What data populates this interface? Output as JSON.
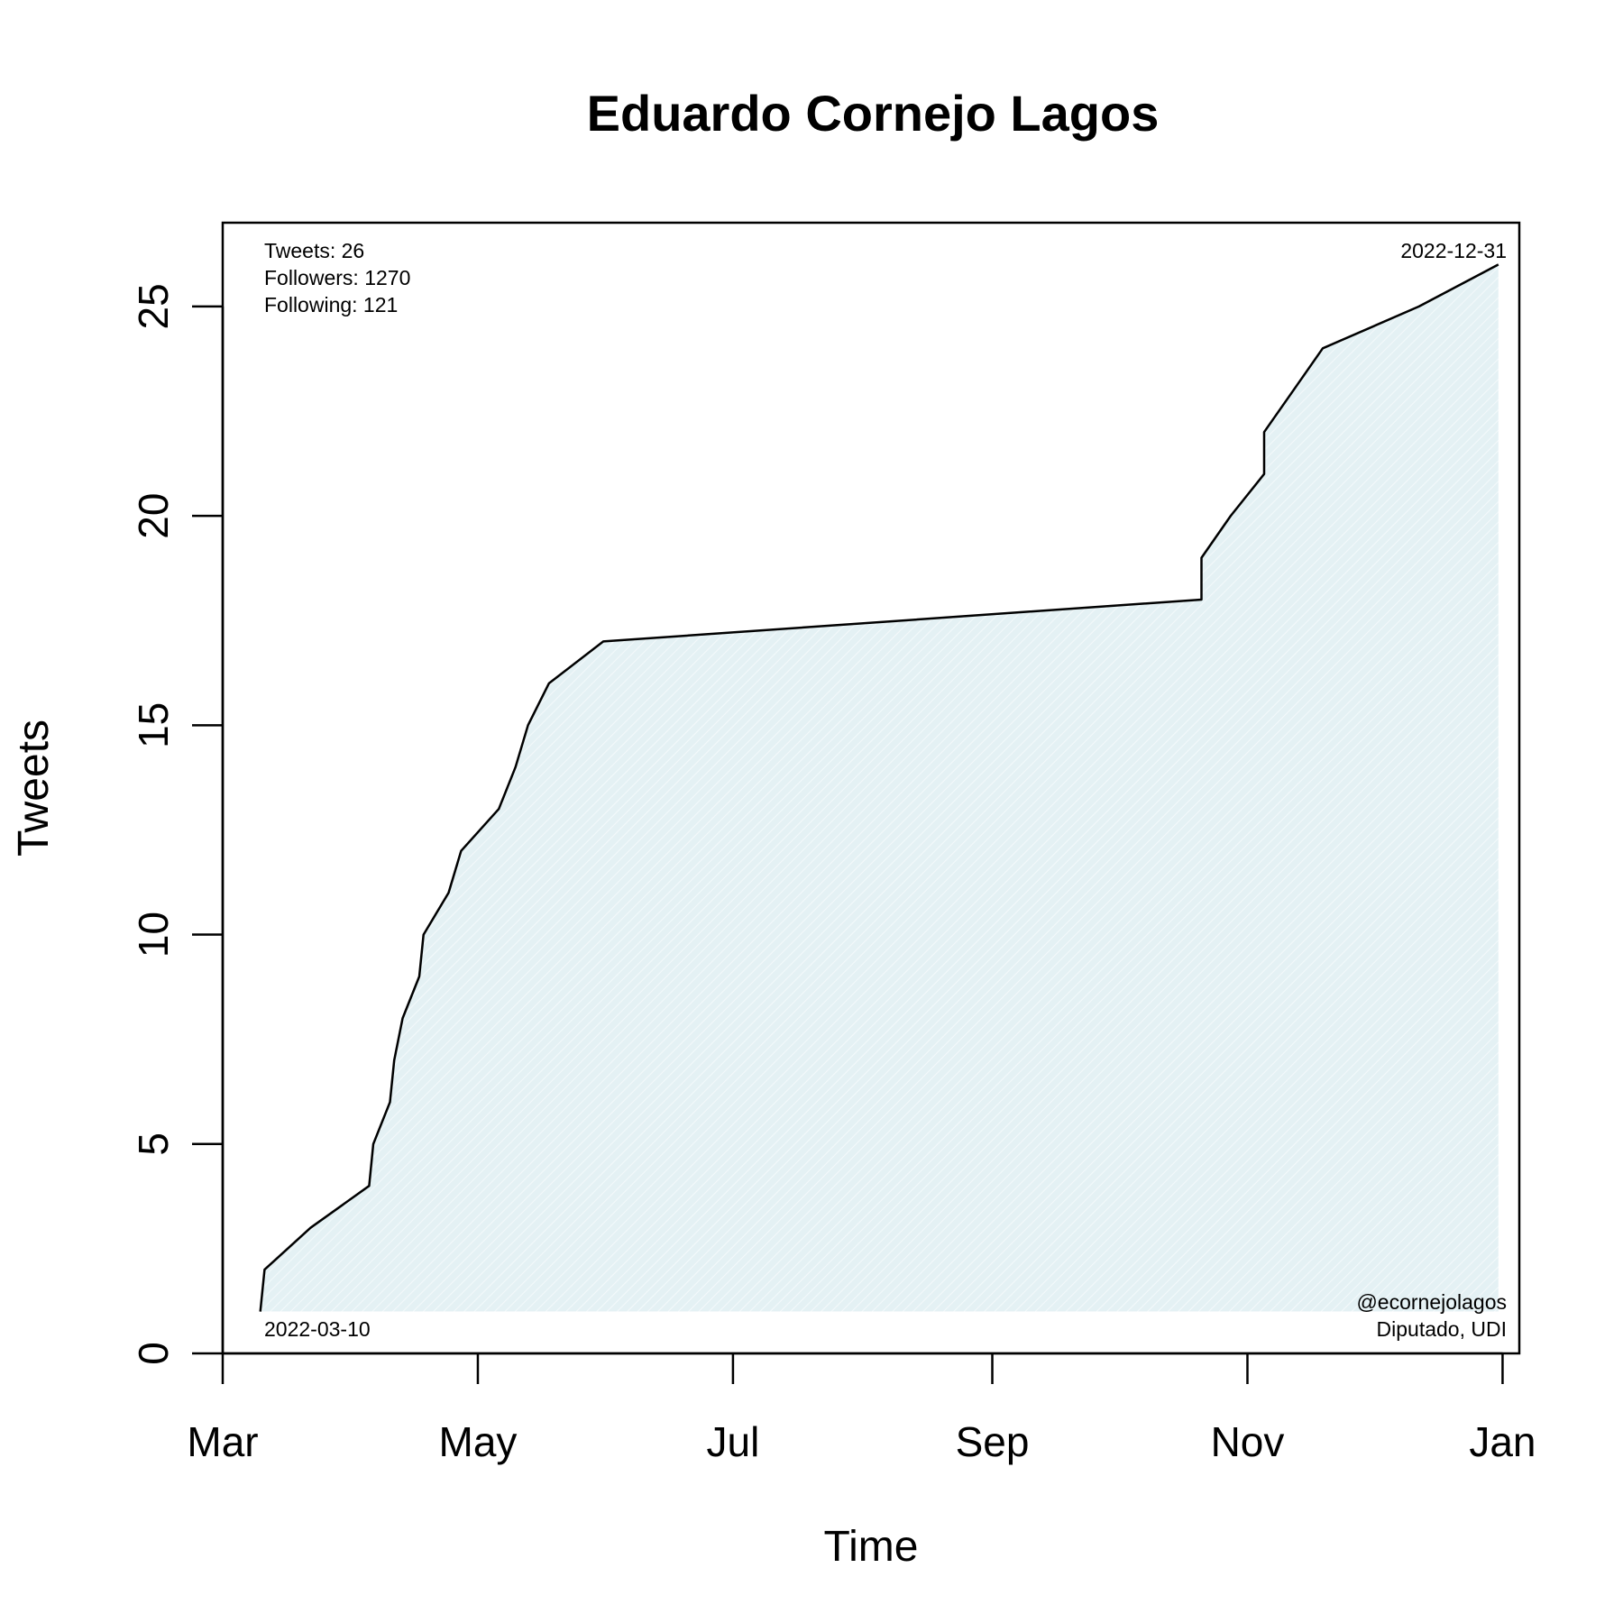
{
  "chart_data": {
    "type": "area",
    "title": "Eduardo Cornejo Lagos",
    "xlabel": "Time",
    "ylabel": "Tweets",
    "xlim": [
      "2022-03-01",
      "2023-01-05"
    ],
    "ylim": [
      0,
      27
    ],
    "x_ticks": [
      {
        "date": "2022-03-01",
        "label": "Mar"
      },
      {
        "date": "2022-05-01",
        "label": "May"
      },
      {
        "date": "2022-07-01",
        "label": "Jul"
      },
      {
        "date": "2022-09-01",
        "label": "Sep"
      },
      {
        "date": "2022-11-01",
        "label": "Nov"
      },
      {
        "date": "2023-01-01",
        "label": "Jan"
      }
    ],
    "y_ticks": [
      0,
      5,
      10,
      15,
      20,
      25
    ],
    "grid": false,
    "line_color": "#000000",
    "fill_color": "#e4f1f4",
    "series": [
      {
        "x": [
          "2022-03-10",
          "2022-03-11",
          "2022-03-22",
          "2022-04-05",
          "2022-04-06",
          "2022-04-10",
          "2022-04-11",
          "2022-04-13",
          "2022-04-17",
          "2022-04-18",
          "2022-04-24",
          "2022-04-27",
          "2022-05-06",
          "2022-05-10",
          "2022-05-13",
          "2022-05-18",
          "2022-05-31",
          "2022-10-21",
          "2022-10-21",
          "2022-10-28",
          "2022-11-05",
          "2022-11-05",
          "2022-11-12",
          "2022-11-19",
          "2022-12-12",
          "2022-12-31"
        ],
        "y": [
          1,
          2,
          3,
          4,
          5,
          6,
          7,
          8,
          9,
          10,
          11,
          12,
          13,
          14,
          15,
          16,
          17,
          18,
          19,
          20,
          21,
          22,
          23,
          24,
          25,
          26
        ]
      }
    ],
    "annotations": {
      "stats": [
        "Tweets: 26",
        "Followers: 1270",
        "Following: 121"
      ],
      "start_date": "2022-03-10",
      "end_date": "2022-12-31",
      "handle": "@ecornejolagos",
      "role": "Diputado, UDI"
    }
  }
}
